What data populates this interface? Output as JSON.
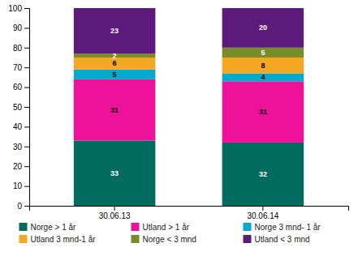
{
  "chart_data": {
    "type": "bar",
    "stacked": true,
    "data_labels": true,
    "legend": "bottom",
    "categories": [
      "30.06.13",
      "30.06.14"
    ],
    "series": [
      {
        "name": "Norge > 1 år",
        "color": "#006B5E",
        "values": [
          33,
          32
        ]
      },
      {
        "name": "Utland > 1 år",
        "color": "#EE1199",
        "values": [
          31,
          31
        ]
      },
      {
        "name": "Norge 3 mnd- 1 år",
        "color": "#00AACC",
        "values": [
          5,
          4
        ]
      },
      {
        "name": "Utland 3 mnd-1 år",
        "color": "#F5A623",
        "values": [
          6,
          8
        ]
      },
      {
        "name": "Norge < 3 mnd",
        "color": "#7A8B2A",
        "values": [
          2,
          5
        ]
      },
      {
        "name": "Utland < 3 mnd",
        "color": "#5C1A7A",
        "values": [
          23,
          20
        ]
      }
    ],
    "ylim": [
      0,
      100
    ],
    "yticks": [
      0,
      10,
      20,
      30,
      40,
      50,
      60,
      70,
      80,
      90,
      100
    ]
  }
}
